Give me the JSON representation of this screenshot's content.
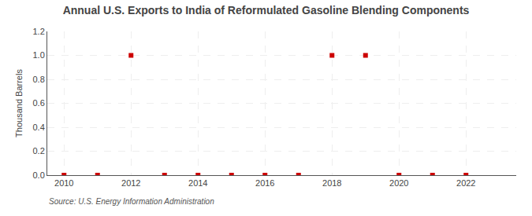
{
  "chart_data": {
    "type": "scatter",
    "title": "Annual U.S. Exports to India of Reformulated Gasoline Blending Components",
    "ylabel": "Thousand Barrels",
    "annotations": [
      "Source: U.S. Energy Information Administration"
    ],
    "x": [
      2010,
      2011,
      2012,
      2013,
      2014,
      2015,
      2016,
      2017,
      2018,
      2019,
      2020,
      2021,
      2022
    ],
    "values": [
      0.0,
      0.0,
      1.0,
      0.0,
      0.0,
      0.0,
      0.0,
      0.0,
      1.0,
      1.0,
      0.0,
      0.0,
      0.0
    ],
    "color": "#cc0000",
    "marker": "square",
    "xlim": [
      2009.5,
      2023.5
    ],
    "xticks": [
      2010,
      2012,
      2014,
      2016,
      2018,
      2020,
      2022
    ],
    "ylim": [
      0,
      1.2
    ],
    "yticks": [
      {
        "value": 0.0,
        "label": "0.0"
      },
      0.2,
      0.4,
      0.6,
      0.8,
      {
        "value": 1.0,
        "label": "1.0"
      },
      1.2
    ],
    "grid": true
  }
}
